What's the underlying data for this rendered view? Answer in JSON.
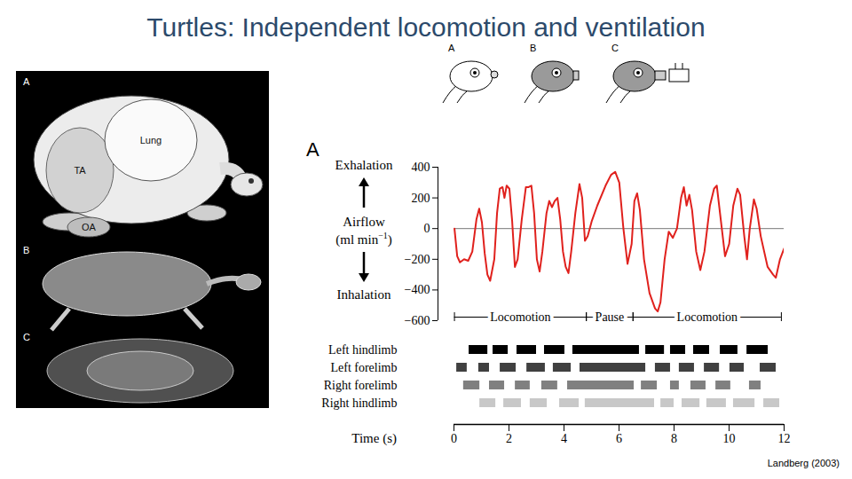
{
  "title": "Turtles: Independent locomotion and ventilation",
  "citation": "Landberg (2003)",
  "anatomy_figure": {
    "panels": [
      {
        "letter": "A",
        "labels": [
          "TA",
          "Lung",
          "OA"
        ]
      },
      {
        "letter": "B"
      },
      {
        "letter": "C"
      }
    ]
  },
  "mask_figure": {
    "panels": [
      "A",
      "B",
      "C"
    ]
  },
  "chart_data": [
    {
      "type": "line",
      "panel_letter": "A",
      "y_label": {
        "top": "Exhalation",
        "middle": "Airflow",
        "unit_prefix": "(ml min",
        "unit_exponent": "−1",
        "unit_suffix": ")",
        "bottom": "Inhalation"
      },
      "x": [
        0,
        0.1,
        0.2,
        0.35,
        0.5,
        0.65,
        0.8,
        0.9,
        1.0,
        1.1,
        1.2,
        1.3,
        1.45,
        1.55,
        1.65,
        1.75,
        1.82,
        1.9,
        2.0,
        2.1,
        2.2,
        2.3,
        2.45,
        2.6,
        2.7,
        2.8,
        2.9,
        3.0,
        3.1,
        3.2,
        3.35,
        3.45,
        3.55,
        3.65,
        3.75,
        3.85,
        3.95,
        4.05,
        4.15,
        4.25,
        4.4,
        4.55,
        4.65,
        4.75,
        4.85,
        5.0,
        5.2,
        5.5,
        5.7,
        5.85,
        6.0,
        6.15,
        6.3,
        6.45,
        6.55,
        6.65,
        6.75,
        6.9,
        7.1,
        7.3,
        7.4,
        7.5,
        7.65,
        7.8,
        7.95,
        8.1,
        8.25,
        8.35,
        8.45,
        8.55,
        8.65,
        8.8,
        8.95,
        9.1,
        9.3,
        9.45,
        9.55,
        9.7,
        9.85,
        10.0,
        10.15,
        10.3,
        10.4,
        10.55,
        10.65,
        10.75,
        10.9,
        11.0,
        11.15,
        11.4,
        11.6,
        11.7,
        11.85,
        12.0
      ],
      "values": [
        0,
        -180,
        -220,
        -200,
        -210,
        -150,
        60,
        130,
        40,
        -160,
        -300,
        -340,
        -200,
        100,
        260,
        270,
        200,
        280,
        260,
        50,
        -250,
        -200,
        60,
        270,
        270,
        280,
        100,
        -200,
        -280,
        -150,
        100,
        180,
        140,
        180,
        200,
        60,
        -150,
        -250,
        -290,
        -150,
        100,
        290,
        200,
        -80,
        -50,
        50,
        150,
        280,
        350,
        370,
        300,
        0,
        -230,
        -100,
        180,
        230,
        120,
        -200,
        -420,
        -520,
        -540,
        -480,
        -200,
        -20,
        -60,
        0,
        200,
        270,
        150,
        220,
        120,
        -150,
        -270,
        -150,
        150,
        260,
        280,
        50,
        -180,
        -100,
        150,
        260,
        220,
        -50,
        -200,
        0,
        190,
        130,
        -50,
        -250,
        -300,
        -320,
        -200,
        -130
      ],
      "color": "#e0211d",
      "xlim": [
        -0.6,
        12
      ],
      "ylim": [
        -600,
        400
      ],
      "yticks": [
        -600,
        -400,
        -200,
        0,
        200,
        400
      ],
      "tick_labels": "y",
      "grid": false,
      "baseline": 0,
      "phases": [
        {
          "label": "Locomotion",
          "start": 0,
          "end": 4.8
        },
        {
          "label": "Pause",
          "start": 4.8,
          "end": 6.5
        },
        {
          "label": "Locomotion",
          "start": 6.5,
          "end": 11.9
        }
      ]
    },
    {
      "type": "bar",
      "orientation": "horizontal",
      "x_label": "Time (s)",
      "xlim": [
        0,
        12
      ],
      "xticks": [
        0,
        2,
        4,
        6,
        8,
        10,
        12
      ],
      "rows": [
        {
          "name": "Left hindlimb",
          "color": "#000000",
          "segments": [
            [
              0.55,
              1.23
            ],
            [
              1.42,
              1.97
            ],
            [
              2.29,
              3.0
            ],
            [
              3.29,
              4.03
            ],
            [
              4.32,
              6.74
            ],
            [
              6.97,
              7.65
            ],
            [
              7.87,
              8.42
            ],
            [
              8.71,
              9.29
            ],
            [
              9.68,
              10.32
            ],
            [
              10.65,
              11.42
            ]
          ]
        },
        {
          "name": "Left forelimb",
          "color": "#404040",
          "segments": [
            [
              0.1,
              0.48
            ],
            [
              0.9,
              1.29
            ],
            [
              1.68,
              2.26
            ],
            [
              2.65,
              3.32
            ],
            [
              3.61,
              4.26
            ],
            [
              4.58,
              6.97
            ],
            [
              7.32,
              7.87
            ],
            [
              8.19,
              8.74
            ],
            [
              9.1,
              9.65
            ],
            [
              10.03,
              10.55
            ],
            [
              11.13,
              11.71
            ]
          ]
        },
        {
          "name": "Right forelimb",
          "color": "#808080",
          "segments": [
            [
              0.35,
              0.94
            ],
            [
              1.29,
              1.84
            ],
            [
              2.23,
              2.77
            ],
            [
              3.19,
              3.77
            ],
            [
              4.13,
              6.55
            ],
            [
              6.81,
              7.39
            ],
            [
              7.87,
              8.19
            ],
            [
              8.61,
              9.16
            ],
            [
              9.52,
              10.06
            ],
            [
              10.74,
              11.16
            ]
          ]
        },
        {
          "name": "Right hindlimb",
          "color": "#c8c8c8",
          "segments": [
            [
              0.94,
              1.52
            ],
            [
              1.81,
              2.45
            ],
            [
              2.77,
              3.39
            ],
            [
              3.84,
              4.55
            ],
            [
              4.77,
              7.29
            ],
            [
              7.52,
              8.0
            ],
            [
              8.29,
              8.94
            ],
            [
              9.19,
              9.9
            ],
            [
              10.16,
              10.94
            ],
            [
              11.26,
              11.84
            ]
          ]
        }
      ]
    }
  ]
}
